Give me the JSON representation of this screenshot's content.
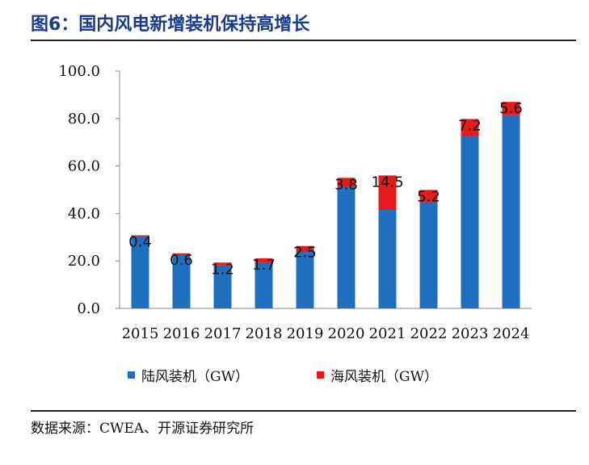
{
  "figure": {
    "title": "图6：国内风电新增装机保持高增长",
    "source": "数据来源：CWEA、开源证券研究所"
  },
  "chart_data": {
    "type": "bar",
    "stacked": true,
    "title": "",
    "xlabel": "",
    "ylabel": "",
    "categories": [
      "2015",
      "2016",
      "2017",
      "2018",
      "2019",
      "2020",
      "2021",
      "2022",
      "2023",
      "2024"
    ],
    "ylim": [
      0,
      100
    ],
    "yticks": [
      "0.0",
      "20.0",
      "40.0",
      "60.0",
      "80.0",
      "100.0"
    ],
    "series": [
      {
        "name": "陆风装机（GW）",
        "color": "#1f6fbf",
        "values": [
          30.4,
          22.6,
          18.1,
          19.4,
          23.8,
          51.2,
          41.5,
          44.7,
          72.6,
          81.4
        ]
      },
      {
        "name": "海风装机（GW）",
        "color": "#e31b1b",
        "values": [
          0.4,
          0.6,
          1.2,
          1.7,
          2.5,
          3.8,
          14.5,
          5.2,
          7.2,
          5.6
        ]
      }
    ],
    "data_labels": [
      "0.4",
      "0.6",
      "1.2",
      "1.7",
      "2.5",
      "3.8",
      "14.5",
      "5.2",
      "7.2",
      "5.6"
    ],
    "legend_position": "bottom",
    "grid": false
  }
}
